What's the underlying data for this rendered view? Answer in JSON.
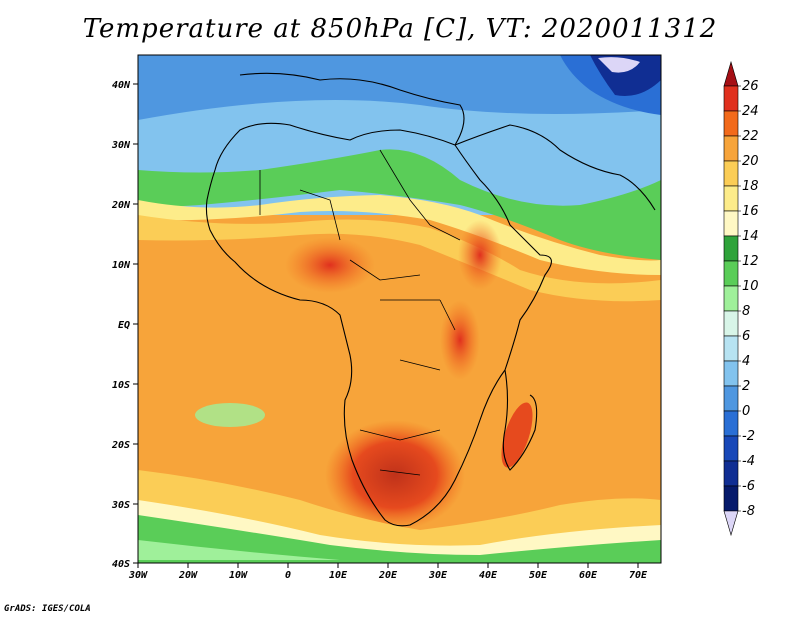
{
  "title": "Temperature at 850hPa [C], VT: 2020011312",
  "credit": "GrADS: IGES/COLA",
  "map": {
    "lon_ticks": [
      "30W",
      "20W",
      "10W",
      "0",
      "10E",
      "20E",
      "30E",
      "40E",
      "50E",
      "60E",
      "70E"
    ],
    "lat_ticks": [
      "40N",
      "30N",
      "20N",
      "10N",
      "EQ",
      "10S",
      "20S",
      "30S",
      "40S"
    ]
  },
  "colorbar": {
    "levels": [
      "26",
      "24",
      "22",
      "20",
      "18",
      "16",
      "14",
      "12",
      "10",
      "8",
      "6",
      "4",
      "2",
      "0",
      "-2",
      "-4",
      "-6",
      "-8"
    ],
    "colors": [
      "#a50f15",
      "#e0301e",
      "#f26a1b",
      "#f7a43a",
      "#fbcd56",
      "#fdec8a",
      "#fff8c4",
      "#2fa33a",
      "#5acd58",
      "#9ff09a",
      "#d8f5e8",
      "#b7e3f2",
      "#82c3ee",
      "#4f97e0",
      "#2a6fd5",
      "#1848b8",
      "#102e93",
      "#061a6b",
      "#dcd6f7"
    ]
  }
}
